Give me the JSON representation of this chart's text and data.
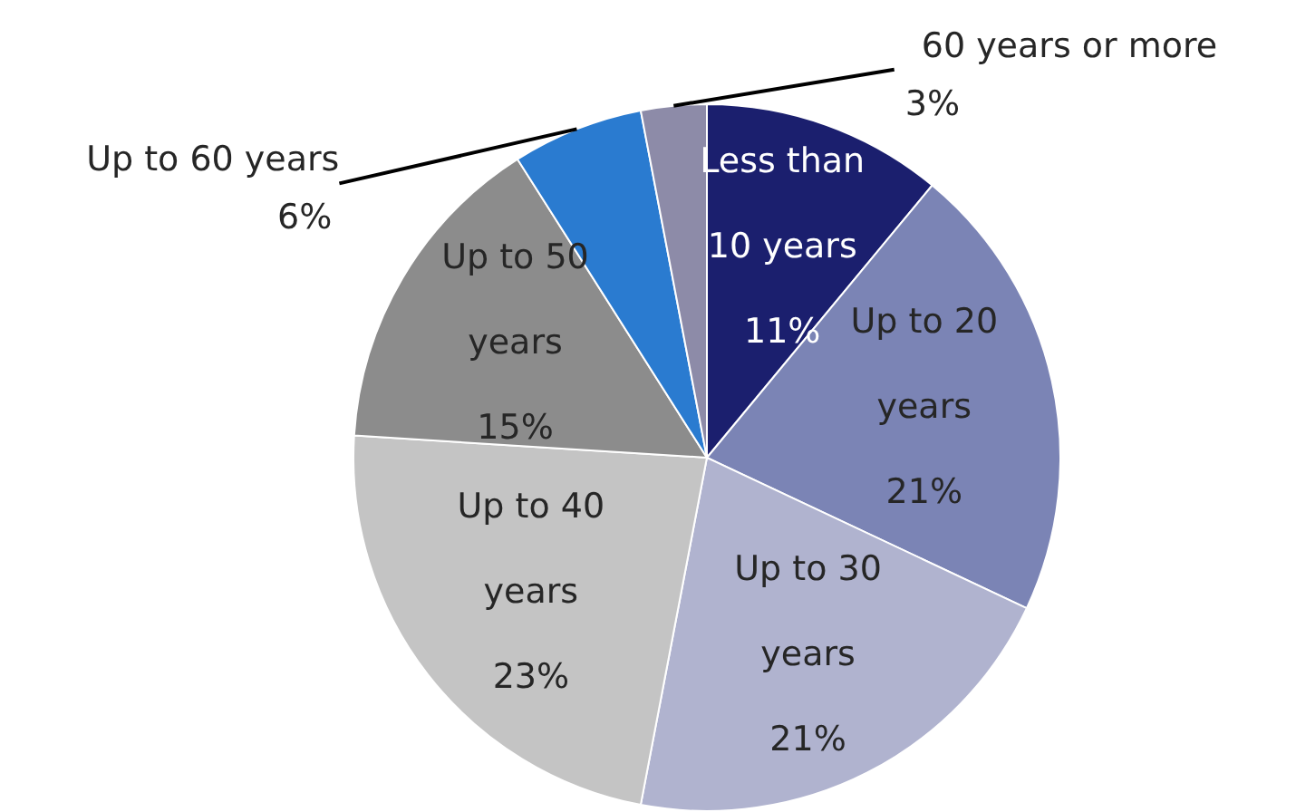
{
  "chart_data": {
    "type": "pie",
    "categories": [
      "Less than 10 years",
      "Up to 20 years",
      "Up to 30 years",
      "Up to 40 years",
      "Up to 50 years",
      "Up to 60 years",
      "60 years or more"
    ],
    "values": [
      11,
      21,
      21,
      23,
      15,
      6,
      3
    ],
    "value_labels": [
      "11%",
      "21%",
      "21%",
      "23%",
      "15%",
      "6%",
      "3%"
    ],
    "colors": [
      "#1b1f6e",
      "#7b84b5",
      "#b0b3cf",
      "#c4c4c4",
      "#8c8c8c",
      "#2a7bd0",
      "#8d8ba8"
    ]
  }
}
